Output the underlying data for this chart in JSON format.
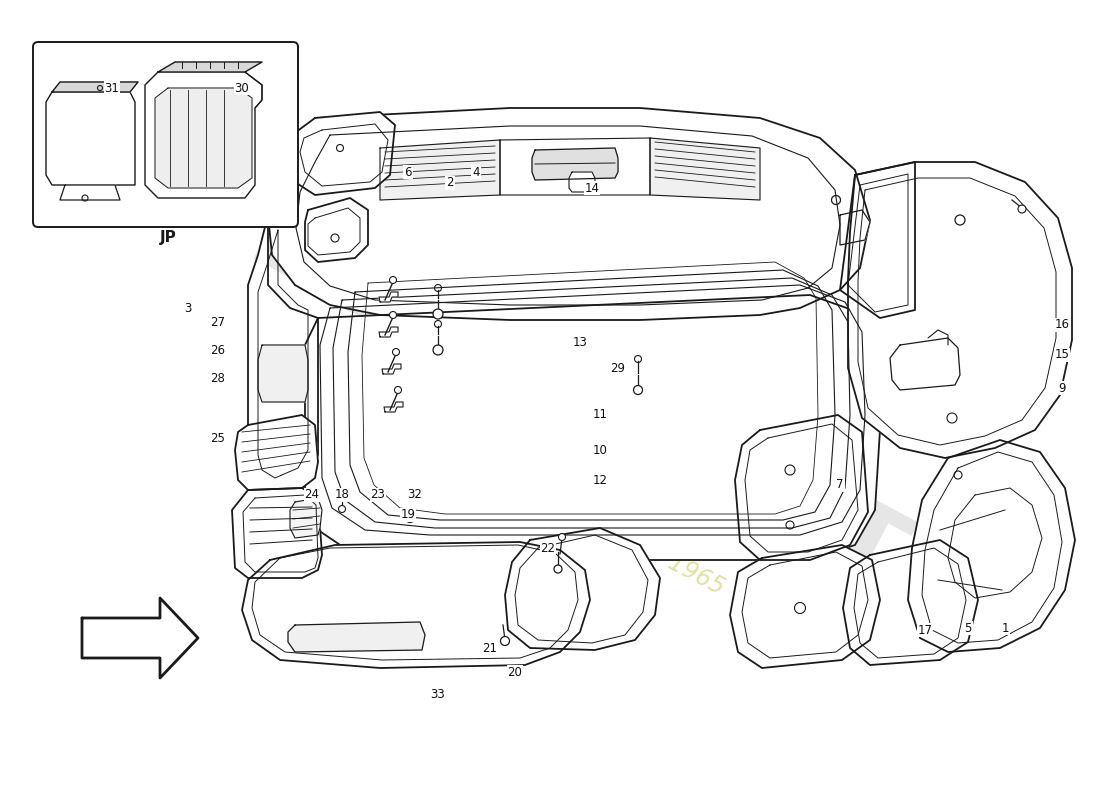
{
  "background_color": "#ffffff",
  "line_color": "#1a1a1a",
  "label_color": "#111111",
  "lw_main": 1.3,
  "lw_thin": 0.8,
  "lw_detail": 0.6,
  "labels": [
    [
      "1",
      1005,
      628
    ],
    [
      "2",
      450,
      183
    ],
    [
      "3",
      188,
      308
    ],
    [
      "4",
      476,
      172
    ],
    [
      "5",
      968,
      628
    ],
    [
      "6",
      408,
      172
    ],
    [
      "7",
      840,
      485
    ],
    [
      "9",
      1062,
      388
    ],
    [
      "10",
      600,
      450
    ],
    [
      "11",
      600,
      415
    ],
    [
      "12",
      600,
      480
    ],
    [
      "13",
      580,
      342
    ],
    [
      "14",
      592,
      188
    ],
    [
      "15",
      1062,
      355
    ],
    [
      "16",
      1062,
      325
    ],
    [
      "17",
      925,
      630
    ],
    [
      "18",
      342,
      495
    ],
    [
      "19",
      408,
      515
    ],
    [
      "20",
      515,
      672
    ],
    [
      "21",
      490,
      648
    ],
    [
      "22",
      548,
      548
    ],
    [
      "23",
      378,
      495
    ],
    [
      "24",
      312,
      495
    ],
    [
      "25",
      218,
      438
    ],
    [
      "26",
      218,
      350
    ],
    [
      "27",
      218,
      322
    ],
    [
      "28",
      218,
      378
    ],
    [
      "29",
      618,
      368
    ],
    [
      "30",
      242,
      88
    ],
    [
      "31",
      112,
      88
    ],
    [
      "32",
      415,
      495
    ],
    [
      "33",
      438,
      695
    ]
  ]
}
